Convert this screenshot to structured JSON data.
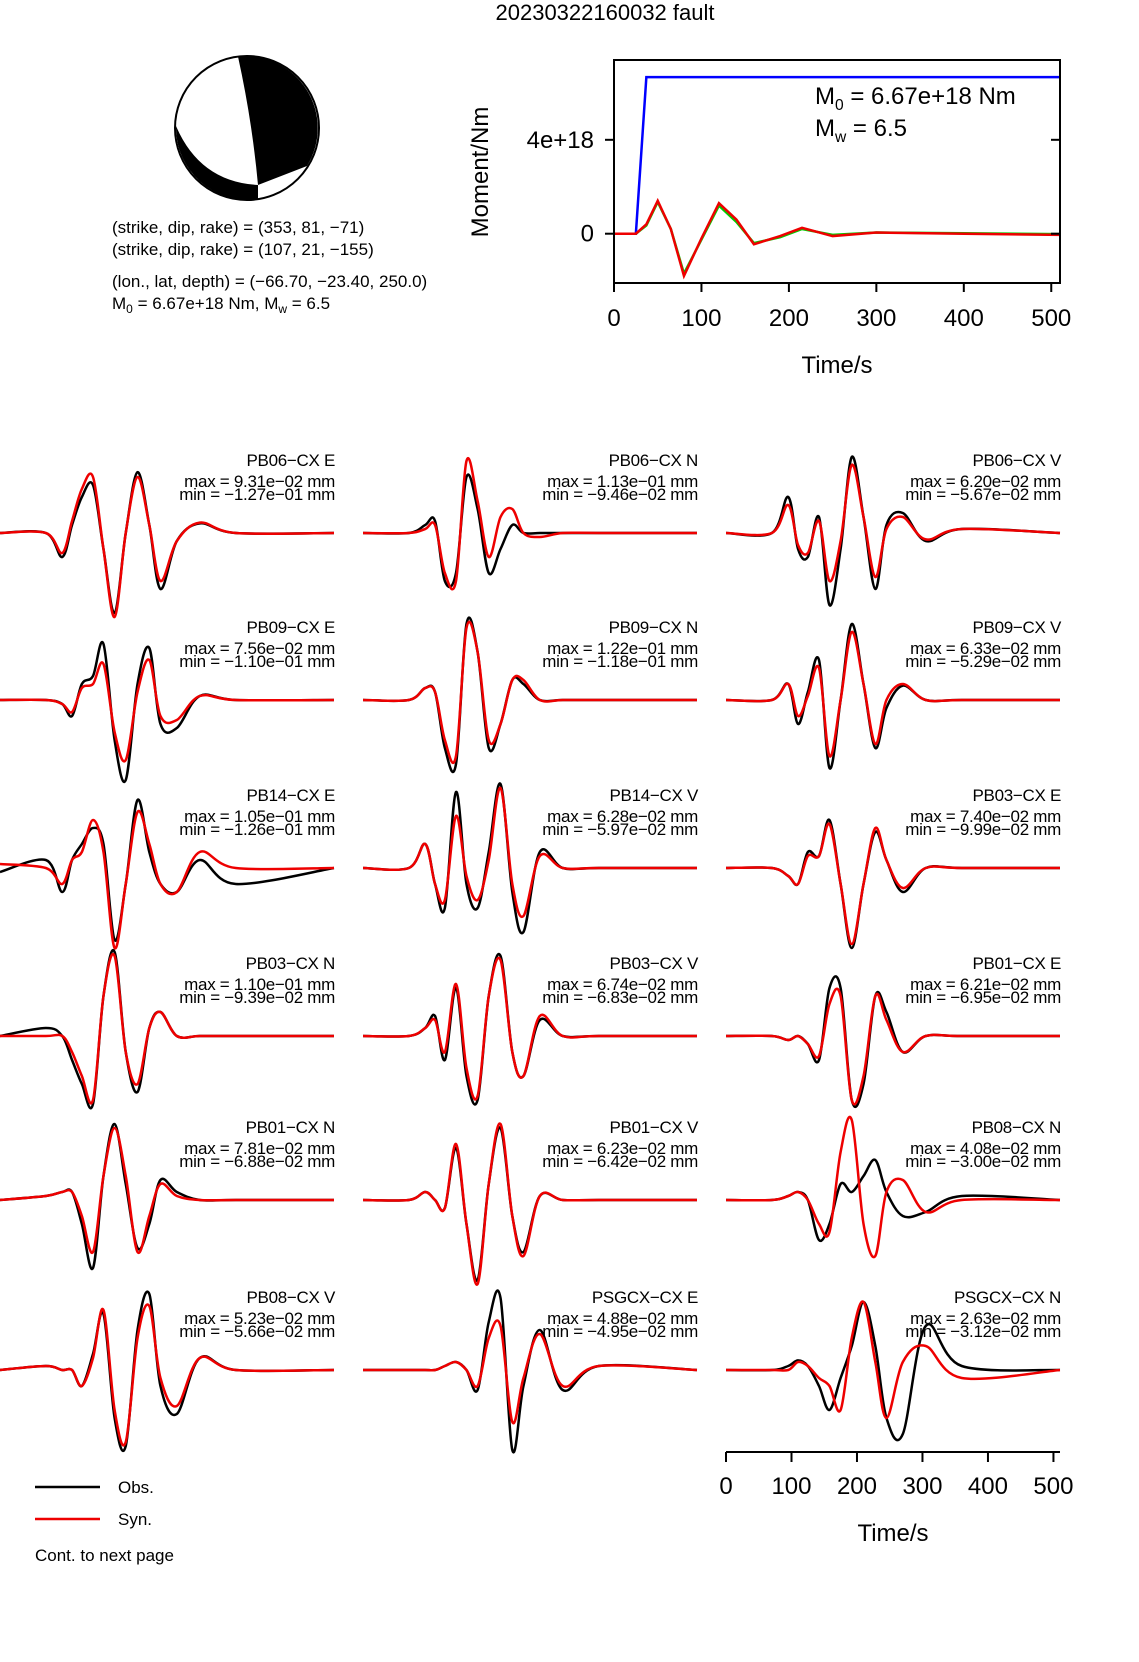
{
  "title": "20230322160032 fault",
  "mechanism": {
    "lines": [
      "(strike, dip, rake) = (353, 81, −71)",
      "(strike, dip, rake) = (107, 21, −155)",
      "(lon., lat, depth) = (−66.70, −23.40, 250.0)"
    ],
    "moment_parts": [
      "M",
      "0",
      " = 6.67e+18 Nm, M",
      "w",
      " = 6.5"
    ]
  },
  "footer": "Cont. to next page",
  "chart_data": [
    {
      "type": "line",
      "xlabel": "Time/s",
      "ylabel": "Moment/Nm",
      "xlim": [
        0,
        510
      ],
      "xticks": [
        0,
        100,
        200,
        300,
        400,
        500
      ],
      "ylim": [
        -2.1e+18,
        7.4e+18
      ],
      "yticks": [
        0,
        {
          "value": 4e+18,
          "label": "4e+18"
        }
      ],
      "annotations": [
        [
          "M",
          "0",
          " = 6.67e+18 Nm"
        ],
        [
          "M",
          "w",
          " = 6.5"
        ]
      ],
      "x": [
        0,
        25,
        37,
        50,
        65,
        80,
        100,
        120,
        140,
        160,
        190,
        215,
        250,
        300,
        400,
        510
      ],
      "series": [
        {
          "color": "#0000ff",
          "values": [
            0,
            0,
            6.67e+18,
            6.67e+18,
            6.67e+18,
            6.67e+18,
            6.67e+18,
            6.67e+18,
            6.67e+18,
            6.67e+18,
            6.67e+18,
            6.67e+18,
            6.67e+18,
            6.67e+18,
            6.67e+18,
            6.67e+18
          ]
        },
        {
          "color": "#00cc00",
          "values": [
            0,
            0,
            3.5e+17,
            1.35e+18,
            2e+17,
            -1.7e+18,
            -2.5e+17,
            1.2e+18,
            5e+17,
            -4e+17,
            -1.5e+17,
            2e+17,
            -5e+16,
            5e+16,
            2e+16,
            -2e+16
          ]
        },
        {
          "color": "#ee0000",
          "values": [
            0,
            0,
            4e+17,
            1.4e+18,
            2e+17,
            -1.8e+18,
            -2e+17,
            1.3e+18,
            6e+17,
            -4.5e+17,
            -1e+17,
            2.5e+17,
            -1e+17,
            5e+16,
            0,
            -5e+16
          ]
        }
      ]
    },
    {
      "type": "waveforms",
      "xlabel": "Time/s",
      "xlim": [
        0,
        510
      ],
      "xticks": [
        0,
        100,
        200,
        300,
        400,
        500
      ],
      "series": [
        {
          "name": "Obs.",
          "color": "#000000"
        },
        {
          "name": "Syn.",
          "color": "#ee0000"
        }
      ],
      "x": [
        0,
        70,
        95,
        110,
        125,
        142,
        158,
        175,
        192,
        210,
        228,
        245,
        270,
        305,
        360,
        510
      ],
      "panels": [
        {
          "station": "PB06−CX E",
          "max": "max = 9.31e−02 mm",
          "min": "min = −1.27e−01 mm",
          "obs": [
            0,
            0,
            -0.3,
            0.1,
            0.45,
            0.6,
            -0.2,
            -1.0,
            0.0,
            0.76,
            0.1,
            -0.7,
            -0.1,
            0.12,
            0.0,
            0
          ],
          "syn": [
            0,
            0,
            -0.25,
            0.15,
            0.55,
            0.7,
            -0.2,
            -1.05,
            0.0,
            0.7,
            0.1,
            -0.6,
            -0.1,
            0.13,
            0.0,
            0
          ]
        },
        {
          "station": "PB06−CX N",
          "max": "max = 1.13e−01 mm",
          "min": "min = −9.46e−02 mm",
          "obs": [
            0,
            0,
            0.1,
            0.15,
            -0.6,
            -0.5,
            0.7,
            0.3,
            -0.5,
            -0.2,
            0.1,
            0.0,
            0.0,
            0.0,
            0.0,
            0
          ],
          "syn": [
            0,
            0,
            0.05,
            0.1,
            -0.5,
            -0.6,
            0.9,
            0.4,
            -0.3,
            0.2,
            0.3,
            0.0,
            -0.05,
            0.0,
            0.0,
            0
          ]
        },
        {
          "station": "PB06−CX V",
          "max": "max = 6.20e−02 mm",
          "min": "min = −5.67e−02 mm",
          "obs": [
            0,
            0,
            0.45,
            -0.2,
            -0.3,
            0.2,
            -0.9,
            -0.2,
            0.95,
            0.2,
            -0.7,
            0.1,
            0.25,
            -0.1,
            0.05,
            0
          ],
          "syn": [
            0,
            0,
            0.35,
            -0.15,
            -0.25,
            0.15,
            -0.6,
            -0.1,
            0.85,
            0.2,
            -0.55,
            0.05,
            0.2,
            -0.08,
            0.05,
            0
          ]
        },
        {
          "station": "PB09−CX E",
          "max": "max = 7.56e−02 mm",
          "min": "min = −1.10e−01 mm",
          "obs": [
            0,
            0,
            -0.05,
            -0.2,
            0.2,
            0.3,
            0.7,
            -0.5,
            -1.0,
            0.2,
            0.65,
            -0.3,
            -0.35,
            0.05,
            0.0,
            0
          ],
          "syn": [
            0,
            0,
            -0.05,
            -0.15,
            0.15,
            0.2,
            0.45,
            -0.4,
            -0.75,
            0.1,
            0.5,
            -0.2,
            -0.25,
            0.05,
            0.0,
            0
          ]
        },
        {
          "station": "PB09−CX N",
          "max": "max = 1.22e−01 mm",
          "min": "min = −1.18e−01 mm",
          "obs": [
            0,
            0,
            0.15,
            0.1,
            -0.6,
            -0.8,
            0.95,
            0.6,
            -0.6,
            -0.3,
            0.25,
            0.2,
            0.0,
            0.0,
            0.0,
            0
          ],
          "syn": [
            0,
            0,
            0.15,
            0.1,
            -0.5,
            -0.7,
            0.9,
            0.6,
            -0.5,
            -0.3,
            0.25,
            0.25,
            0.0,
            0.0,
            0.0,
            0
          ]
        },
        {
          "station": "PB09−CX V",
          "max": "max = 6.33e−02 mm",
          "min": "min = −5.29e−02 mm",
          "obs": [
            0,
            0,
            0.2,
            -0.3,
            0.1,
            0.5,
            -0.85,
            0.0,
            0.95,
            0.2,
            -0.6,
            -0.1,
            0.18,
            0.0,
            0.0,
            0
          ],
          "syn": [
            0,
            0,
            0.2,
            -0.2,
            0.05,
            0.4,
            -0.7,
            0.0,
            0.85,
            0.2,
            -0.55,
            0.0,
            0.2,
            0.0,
            0.0,
            0
          ]
        },
        {
          "station": "PB14−CX E",
          "max": "max = 1.05e−01 mm",
          "min": "min = −1.26e−01 mm",
          "obs": [
            -0.05,
            0.1,
            -0.3,
            0.1,
            0.3,
            0.5,
            0.3,
            -0.9,
            -0.2,
            0.85,
            0.2,
            -0.2,
            -0.3,
            0.1,
            -0.2,
            0.0
          ],
          "syn": [
            0.05,
            0.0,
            -0.2,
            0.1,
            0.2,
            0.6,
            0.2,
            -1.0,
            -0.2,
            0.7,
            0.3,
            -0.2,
            -0.3,
            0.2,
            0.0,
            0.0
          ]
        },
        {
          "station": "PB14−CX V",
          "max": "max = 6.28e−02 mm",
          "min": "min = −5.97e−02 mm",
          "obs": [
            0,
            0,
            0.3,
            -0.2,
            -0.5,
            0.95,
            -0.2,
            -0.5,
            0.2,
            1.05,
            -0.3,
            -0.8,
            0.2,
            0.0,
            0.0,
            0
          ],
          "syn": [
            0,
            0,
            0.3,
            -0.2,
            -0.4,
            0.65,
            -0.1,
            -0.4,
            0.1,
            1.0,
            -0.2,
            -0.6,
            0.15,
            0.0,
            0.0,
            0
          ]
        },
        {
          "station": "PB03−CX E",
          "max": "max = 7.40e−02 mm",
          "min": "min = −9.99e−02 mm",
          "obs": [
            0,
            0,
            -0.1,
            -0.2,
            0.2,
            0.15,
            0.6,
            -0.2,
            -1.0,
            -0.2,
            0.45,
            0.1,
            -0.3,
            0.0,
            0.0,
            0
          ],
          "syn": [
            0,
            0,
            -0.1,
            -0.2,
            0.15,
            0.15,
            0.55,
            -0.2,
            -0.95,
            -0.2,
            0.5,
            0.1,
            -0.25,
            0.0,
            0.0,
            0
          ]
        },
        {
          "station": "PB03−CX N",
          "max": "max = 1.10e−01 mm",
          "min": "min = −9.39e−02 mm",
          "obs": [
            0,
            0.1,
            0.0,
            -0.3,
            -0.6,
            -0.85,
            0.5,
            1.05,
            -0.2,
            -0.7,
            0.1,
            0.3,
            0.0,
            0.0,
            0.0,
            0
          ],
          "syn": [
            0,
            0.0,
            0.0,
            -0.2,
            -0.5,
            -0.8,
            0.5,
            1.0,
            -0.2,
            -0.6,
            0.1,
            0.3,
            0.0,
            0.0,
            0.0,
            0
          ]
        },
        {
          "station": "PB03−CX V",
          "max": "max = 6.74e−02 mm",
          "min": "min = −6.83e−02 mm",
          "obs": [
            0,
            0,
            0.1,
            0.25,
            -0.3,
            0.6,
            -0.5,
            -0.8,
            0.5,
            1.0,
            -0.2,
            -0.5,
            0.2,
            0.0,
            0.0,
            0
          ],
          "syn": [
            0,
            0,
            0.1,
            0.2,
            -0.2,
            0.65,
            -0.4,
            -0.75,
            0.5,
            0.95,
            -0.2,
            -0.5,
            0.25,
            0.0,
            0.0,
            0
          ]
        },
        {
          "station": "PB01−CX E",
          "max": "max = 6.21e−02 mm",
          "min": "min = −6.95e−02 mm",
          "obs": [
            0,
            0,
            -0.05,
            0.0,
            -0.1,
            -0.3,
            0.6,
            0.6,
            -0.8,
            -0.6,
            0.5,
            0.3,
            -0.2,
            0.0,
            0.0,
            0
          ],
          "syn": [
            0,
            0,
            -0.05,
            0.0,
            -0.1,
            -0.25,
            0.4,
            0.5,
            -0.8,
            -0.5,
            0.5,
            0.2,
            -0.2,
            0.0,
            0.0,
            0
          ]
        },
        {
          "station": "PB01−CX N",
          "max": "max = 7.81e−02 mm",
          "min": "min = −6.88e−02 mm",
          "obs": [
            0,
            0.05,
            0.1,
            0.1,
            -0.3,
            -0.85,
            0.3,
            0.95,
            0.2,
            -0.6,
            -0.3,
            0.25,
            0.1,
            0.0,
            0.0,
            0
          ],
          "syn": [
            0,
            0.05,
            0.1,
            0.1,
            -0.2,
            -0.65,
            0.3,
            0.9,
            0.3,
            -0.65,
            -0.2,
            0.2,
            0.05,
            0.0,
            0.0,
            0
          ]
        },
        {
          "station": "PB01−CX V",
          "max": "max = 6.23e−02 mm",
          "min": "min = −6.42e−02 mm",
          "obs": [
            0,
            0,
            0.1,
            0.0,
            -0.1,
            0.65,
            -0.3,
            -1.0,
            0.2,
            0.9,
            -0.2,
            -0.65,
            0.05,
            0.0,
            0.0,
            0
          ],
          "syn": [
            0,
            0,
            0.1,
            0.0,
            -0.1,
            0.7,
            -0.3,
            -1.05,
            0.2,
            0.95,
            -0.2,
            -0.7,
            0.05,
            0.0,
            0.0,
            0
          ]
        },
        {
          "station": "PB08−CX N",
          "max": "max = 4.08e−02 mm",
          "min": "min = −3.00e−02 mm",
          "obs": [
            0,
            0,
            0.05,
            0.1,
            0.0,
            -0.5,
            -0.3,
            0.2,
            0.1,
            0.3,
            0.5,
            0.1,
            -0.2,
            -0.15,
            0.05,
            0
          ],
          "syn": [
            0,
            0,
            0.05,
            0.1,
            0.0,
            -0.3,
            -0.4,
            0.6,
            1.0,
            -0.3,
            -0.7,
            0.1,
            0.25,
            -0.15,
            0.0,
            0
          ]
        },
        {
          "station": "PB08−CX V",
          "max": "max = 5.23e−02 mm",
          "min": "min = −5.66e−02 mm",
          "obs": [
            0,
            0.05,
            0.0,
            0.0,
            -0.2,
            0.2,
            0.7,
            -0.6,
            -0.95,
            0.5,
            0.95,
            -0.2,
            -0.55,
            0.15,
            0.0,
            0
          ],
          "syn": [
            0,
            0.05,
            0.0,
            0.0,
            -0.2,
            0.15,
            0.75,
            -0.5,
            -0.9,
            0.4,
            0.8,
            -0.1,
            -0.45,
            0.15,
            0.0,
            0
          ]
        },
        {
          "station": "PSGCX−CX E",
          "max": "max = 4.88e−02 mm",
          "min": "min = −4.95e−02 mm",
          "obs": [
            0,
            0,
            0.0,
            0.0,
            0.05,
            0.1,
            0.0,
            -0.25,
            0.6,
            0.9,
            -1.0,
            -0.2,
            0.5,
            -0.25,
            0.05,
            0
          ],
          "syn": [
            0,
            0,
            0.0,
            0.0,
            0.05,
            0.1,
            0.0,
            -0.2,
            0.4,
            0.55,
            -0.65,
            -0.1,
            0.45,
            -0.2,
            0.05,
            0
          ]
        },
        {
          "station": "PSGCX−CX N",
          "max": "max = 2.63e−02 mm",
          "min": "min = −3.12e−02 mm",
          "obs": [
            0,
            0,
            0.05,
            0.12,
            0.05,
            -0.2,
            -0.5,
            -0.1,
            0.3,
            0.85,
            0.3,
            -0.6,
            -0.8,
            0.55,
            0.05,
            0
          ],
          "syn": [
            0,
            0,
            0.0,
            0.1,
            0.05,
            -0.1,
            -0.2,
            -0.5,
            0.4,
            0.85,
            0.1,
            -0.6,
            0.1,
            0.3,
            -0.1,
            0
          ]
        }
      ]
    }
  ]
}
